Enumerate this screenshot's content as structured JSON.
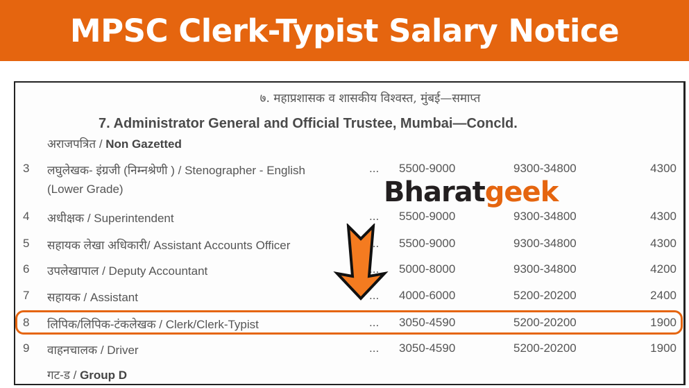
{
  "banner": {
    "title": "MPSC Clerk-Typist Salary Notice"
  },
  "document": {
    "heading_marathi": "७. महाप्रशासक व शासकीय विश्वस्त, मुंबई—समाप्त",
    "heading_english": "7. Administrator General and Official Trustee, Mumbai—Concld.",
    "section_non_gazetted": {
      "marathi": "अराजपत्रित / ",
      "english": "Non Gazetted"
    },
    "rows": [
      {
        "no": "3",
        "post": "लघुलेखक- इंग्रजी (निम्नश्रेणी ) / Stenographer - English",
        "post_line2": "(Lower Grade)",
        "dots": "...",
        "old_scale": "5500-9000",
        "pay_band": "9300-34800",
        "grade_pay": "4300"
      },
      {
        "no": "4",
        "post": "अधीक्षक / Superintendent",
        "dots": "...",
        "old_scale": "5500-9000",
        "pay_band": "9300-34800",
        "grade_pay": "4300"
      },
      {
        "no": "5",
        "post": "सहायक लेखा अधिकारी/  Assistant Accounts Officer",
        "dots": "...",
        "old_scale": "5500-9000",
        "pay_band": "9300-34800",
        "grade_pay": "4300"
      },
      {
        "no": "6",
        "post": "उपलेखापाल / Deputy Accountant",
        "dots": "...",
        "old_scale": "5000-8000",
        "pay_band": "9300-34800",
        "grade_pay": "4200"
      },
      {
        "no": "7",
        "post": "सहायक / Assistant",
        "dots": "...",
        "old_scale": "4000-6000",
        "pay_band": "5200-20200",
        "grade_pay": "2400"
      },
      {
        "no": "8",
        "post": "लिपिक/लिपिक-टंकलेखक / Clerk/Clerk-Typist",
        "dots": "...",
        "old_scale": "3050-4590",
        "pay_band": "5200-20200",
        "grade_pay": "1900"
      },
      {
        "no": "9",
        "post": "वाहनचालक / Driver",
        "dots": "...",
        "old_scale": "3050-4590",
        "pay_band": "5200-20200",
        "grade_pay": "1900"
      }
    ],
    "section_group_d": {
      "marathi": "गट-ड / ",
      "english": "Group D"
    }
  },
  "watermark": {
    "part1": "Bharat",
    "part2": "geek"
  },
  "colors": {
    "accent": "#e5650f",
    "arrow": "#f47b20"
  }
}
